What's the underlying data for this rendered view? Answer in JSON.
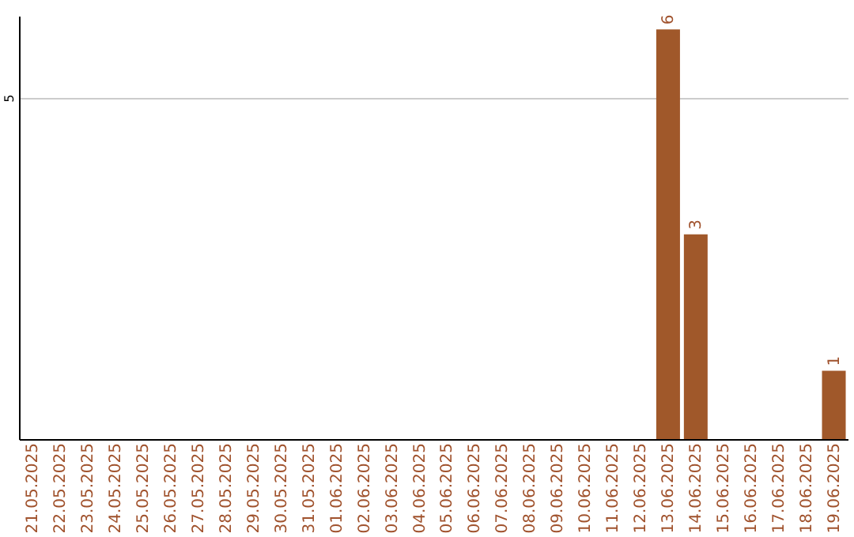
{
  "chart_data": {
    "type": "bar",
    "categories": [
      "21.05.2025",
      "22.05.2025",
      "23.05.2025",
      "24.05.2025",
      "25.05.2025",
      "26.05.2025",
      "27.05.2025",
      "28.05.2025",
      "29.05.2025",
      "30.05.2025",
      "31.05.2025",
      "01.06.2025",
      "02.06.2025",
      "03.06.2025",
      "04.06.2025",
      "05.06.2025",
      "06.06.2025",
      "07.06.2025",
      "08.06.2025",
      "09.06.2025",
      "10.06.2025",
      "11.06.2025",
      "12.06.2025",
      "13.06.2025",
      "14.06.2025",
      "15.06.2025",
      "16.06.2025",
      "17.06.2025",
      "18.06.2025",
      "19.06.2025"
    ],
    "values": [
      null,
      null,
      null,
      null,
      null,
      null,
      null,
      null,
      null,
      null,
      null,
      null,
      null,
      null,
      null,
      null,
      null,
      null,
      null,
      null,
      null,
      null,
      null,
      6,
      3,
      null,
      null,
      null,
      null,
      1
    ],
    "data_labels": true,
    "color": "#a0582a",
    "ylim": [
      0,
      6.2
    ],
    "yticks": [
      5
    ],
    "grid": "y"
  }
}
